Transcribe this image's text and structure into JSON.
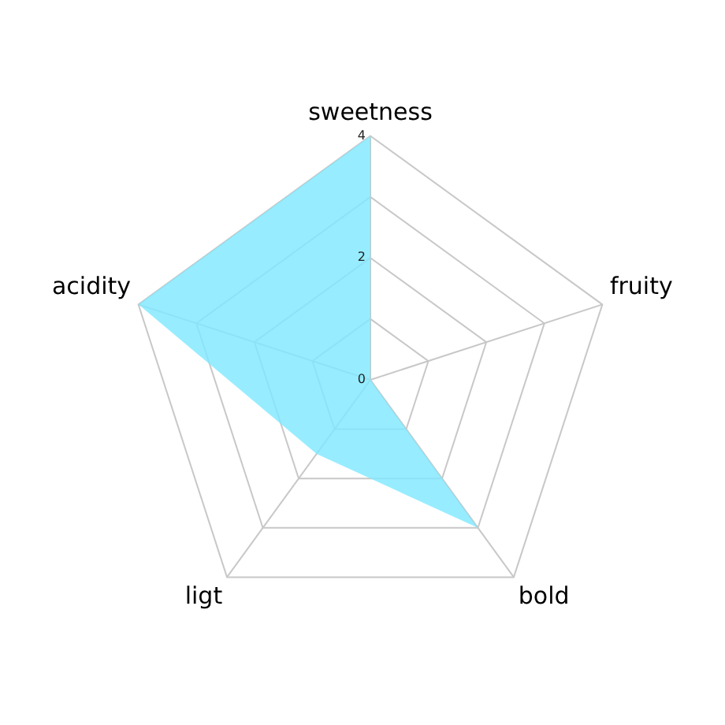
{
  "chart_data": {
    "type": "radar",
    "categories": [
      "sweetness",
      "fruity",
      "bold",
      "ligt",
      "acidity"
    ],
    "series": [
      {
        "color": "#80e9ff",
        "values": [
          4,
          0,
          3,
          1.5,
          4
        ]
      }
    ],
    "ylim": [
      0,
      4
    ],
    "yticks": [
      0,
      2,
      4
    ],
    "legend": false
  }
}
